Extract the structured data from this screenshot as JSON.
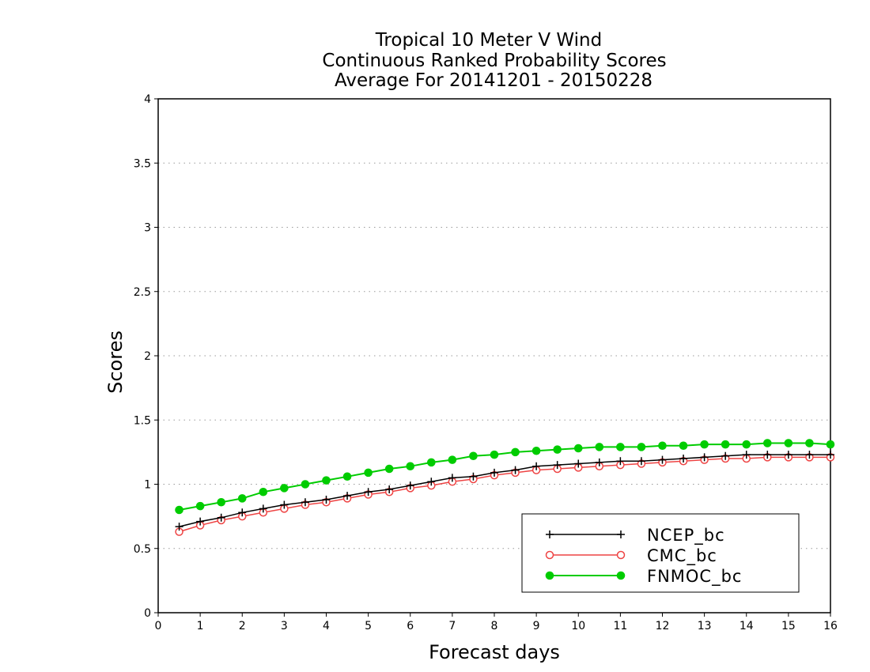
{
  "chart_data": {
    "type": "line",
    "title_lines": [
      "Tropical 10 Meter V Wind",
      "Continuous Ranked Probability Scores",
      "Average For 20141201 - 20150228"
    ],
    "xlabel": "Forecast days",
    "ylabel": "Scores",
    "xlim": [
      0,
      16
    ],
    "ylim": [
      0,
      4
    ],
    "xticks": [
      0,
      1,
      2,
      3,
      4,
      5,
      6,
      7,
      8,
      9,
      10,
      11,
      12,
      13,
      14,
      15,
      16
    ],
    "yticks": [
      0,
      0.5,
      1,
      1.5,
      2,
      2.5,
      3,
      3.5,
      4
    ],
    "ytick_labels": [
      "0",
      "0.5",
      "1",
      "1.5",
      "2",
      "2.5",
      "3",
      "3.5",
      "4"
    ],
    "grid": "horizontal dotted",
    "legend_position": "bottom-right",
    "x": [
      0.5,
      1,
      1.5,
      2,
      2.5,
      3,
      3.5,
      4,
      4.5,
      5,
      5.5,
      6,
      6.5,
      7,
      7.5,
      8,
      8.5,
      9,
      9.5,
      10,
      10.5,
      11,
      11.5,
      12,
      12.5,
      13,
      13.5,
      14,
      14.5,
      15,
      15.5,
      16
    ],
    "series": [
      {
        "name": "NCEP_bc",
        "color": "#000000",
        "marker": "plus",
        "values": [
          0.67,
          0.71,
          0.74,
          0.78,
          0.81,
          0.84,
          0.86,
          0.88,
          0.91,
          0.94,
          0.96,
          0.99,
          1.02,
          1.05,
          1.06,
          1.09,
          1.11,
          1.14,
          1.15,
          1.16,
          1.17,
          1.18,
          1.18,
          1.19,
          1.2,
          1.21,
          1.22,
          1.23,
          1.23,
          1.23,
          1.23,
          1.23
        ]
      },
      {
        "name": "CMC_bc",
        "color": "#ee4444",
        "marker": "open-circle",
        "values": [
          0.63,
          0.68,
          0.72,
          0.75,
          0.78,
          0.81,
          0.84,
          0.86,
          0.89,
          0.92,
          0.94,
          0.97,
          0.99,
          1.02,
          1.04,
          1.07,
          1.09,
          1.11,
          1.12,
          1.13,
          1.14,
          1.15,
          1.16,
          1.17,
          1.18,
          1.19,
          1.2,
          1.2,
          1.21,
          1.21,
          1.21,
          1.21
        ]
      },
      {
        "name": "FNMOC_bc",
        "color": "#00cc00",
        "marker": "filled-circle",
        "values": [
          0.8,
          0.83,
          0.86,
          0.89,
          0.94,
          0.97,
          1.0,
          1.03,
          1.06,
          1.09,
          1.12,
          1.14,
          1.17,
          1.19,
          1.22,
          1.23,
          1.25,
          1.26,
          1.27,
          1.28,
          1.29,
          1.29,
          1.29,
          1.3,
          1.3,
          1.31,
          1.31,
          1.31,
          1.32,
          1.32,
          1.32,
          1.31
        ]
      }
    ]
  }
}
